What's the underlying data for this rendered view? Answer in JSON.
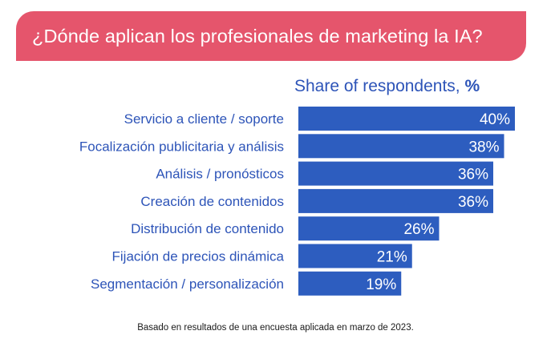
{
  "header": {
    "title": "¿Dónde aplican los profesionales de marketing la IA?"
  },
  "chart_data": {
    "type": "bar",
    "orientation": "horizontal",
    "ylabel_prefix": "Share of respondents, ",
    "ylabel_unit": "%",
    "categories": [
      "Servicio a cliente / soporte",
      "Focalización publicitaria y análisis",
      "Análisis / pronósticos",
      "Creación de contenidos",
      "Distribución de contenido",
      "Fijación de precios dinámica",
      "Segmentación / personalización"
    ],
    "values": [
      40,
      38,
      36,
      36,
      26,
      21,
      19
    ],
    "value_suffix": "%",
    "bar_color": "#2d5dbf",
    "label_color": "#2d54b8"
  },
  "footnote": "Basado en resultados de una encuesta aplicada en marzo de 2023."
}
